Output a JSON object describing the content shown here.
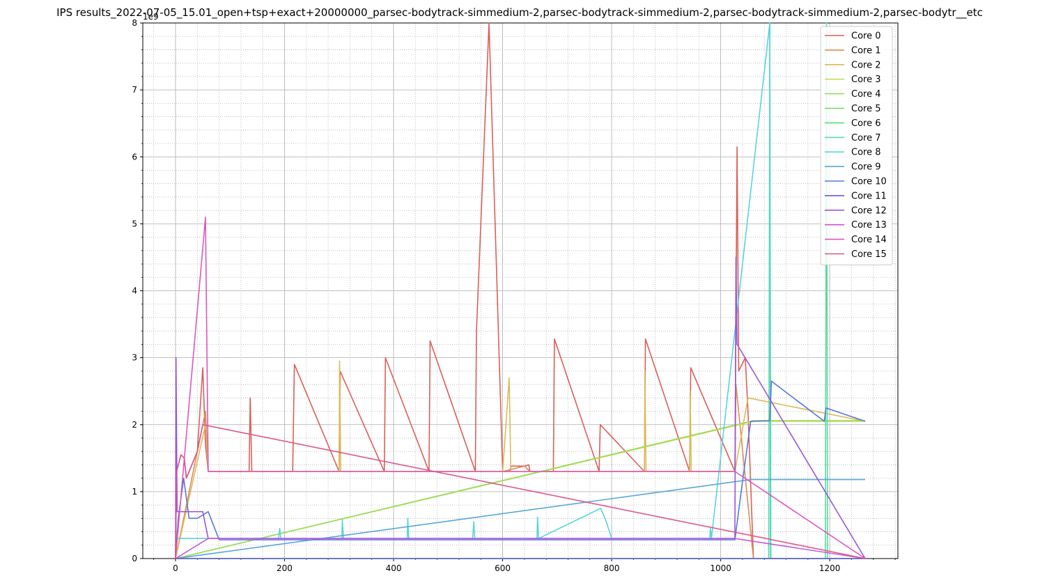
{
  "chart_data": {
    "type": "line",
    "title": "IPS results_2022-07-05_15.01_open+tsp+exact+20000000_parsec-bodytrack-simmedium-2,parsec-bodytrack-simmedium-2,parsec-bodytrack-simmedium-2,parsec-bodytr__etc",
    "xlabel": "",
    "ylabel": "",
    "y_offset_label": "1e9",
    "xlim": [
      -60,
      1325
    ],
    "ylim": [
      0,
      8
    ],
    "x_ticks": [
      0,
      200,
      400,
      600,
      800,
      1000,
      1200
    ],
    "y_ticks": [
      0,
      1,
      2,
      3,
      4,
      5,
      6,
      7,
      8
    ],
    "grid": {
      "major": true,
      "minor": true
    },
    "legend_position": "top-right",
    "series": [
      {
        "name": "Core 0",
        "color": "#db5f57",
        "role": "high",
        "x": [
          0,
          2,
          10,
          16,
          20,
          40,
          50,
          55,
          60,
          135,
          137,
          140,
          215,
          218,
          300,
          302,
          383,
          385,
          465,
          467,
          550,
          552,
          575,
          600,
          612,
          616,
          640,
          648,
          650,
          693,
          695,
          777,
          779,
          860,
          862,
          943,
          945,
          1026,
          1030,
          1033,
          1045,
          1050,
          1060,
          1265
        ],
        "y": [
          0,
          1.3,
          1.55,
          1.5,
          1.2,
          1.6,
          2.85,
          1.7,
          1.3,
          1.3,
          2.4,
          1.3,
          1.3,
          2.9,
          1.3,
          2.8,
          1.3,
          3.0,
          1.3,
          3.25,
          1.3,
          3.4,
          8.0,
          1.3,
          1.3,
          1.38,
          1.38,
          1.4,
          1.3,
          1.3,
          3.28,
          1.3,
          2.0,
          1.3,
          3.28,
          1.3,
          2.85,
          1.3,
          6.15,
          2.8,
          3.0,
          2.2,
          0,
          0
        ]
      },
      {
        "name": "Core 1",
        "color": "#db8c57",
        "role": "high",
        "x": [
          0,
          55,
          60,
          140,
          600,
          640,
          650,
          700,
          1026,
          1028,
          1060,
          1265
        ],
        "y": [
          0,
          2.2,
          1.3,
          1.3,
          1.3,
          1.38,
          1.3,
          1.3,
          1.3,
          2.6,
          0,
          0
        ]
      },
      {
        "name": "Core 2",
        "color": "#dbba57",
        "role": "high",
        "x": [
          0,
          55,
          60,
          300,
          301,
          303,
          600,
          612,
          615,
          650,
          700,
          860,
          861,
          863,
          943,
          944,
          946,
          1026,
          1050,
          1265
        ],
        "y": [
          0,
          2.0,
          1.3,
          1.3,
          2.95,
          1.3,
          1.3,
          2.7,
          1.3,
          1.3,
          1.3,
          1.3,
          2.8,
          1.3,
          1.3,
          2.5,
          1.3,
          1.3,
          2.4,
          2.05
        ]
      },
      {
        "name": "Core 3",
        "color": "#c6db57",
        "role": "high",
        "x": [
          0,
          1060,
          1265
        ],
        "y": [
          0,
          2.05,
          2.05
        ]
      },
      {
        "name": "Core 4",
        "color": "#98db57",
        "role": "high",
        "x": [
          0,
          1060,
          1265
        ],
        "y": [
          0,
          2.06,
          2.06
        ]
      },
      {
        "name": "Core 5",
        "color": "#6bdb57",
        "role": "low",
        "x": [
          0,
          1265
        ],
        "y": [
          0,
          0
        ]
      },
      {
        "name": "Core 6",
        "color": "#57db72",
        "role": "low",
        "x": [
          0,
          1265
        ],
        "y": [
          0,
          0
        ]
      },
      {
        "name": "Core 7",
        "color": "#57dba0",
        "role": "spike",
        "x": [
          0,
          1088,
          1090,
          1092,
          1192,
          1194,
          1196,
          1265
        ],
        "y": [
          0,
          0,
          8.0,
          0,
          0,
          8.0,
          0,
          0
        ]
      },
      {
        "name": "Core 8",
        "color": "#57d4db",
        "role": "low",
        "x": [
          0,
          189,
          191,
          193,
          305,
          306,
          308,
          425,
          426,
          428,
          545,
          547,
          549,
          663,
          664,
          666,
          780,
          790,
          800,
          980,
          981,
          983,
          1090,
          1091,
          1093,
          1265
        ],
        "y": [
          0.3,
          0.3,
          0.45,
          0.3,
          0.3,
          0.58,
          0.3,
          0.3,
          0.6,
          0.3,
          0.3,
          0.55,
          0.3,
          0.3,
          0.62,
          0.3,
          0.75,
          0.55,
          0.3,
          0.3,
          0.45,
          0.3,
          8.0,
          0,
          0,
          0
        ]
      },
      {
        "name": "Core 9",
        "color": "#57a6db",
        "role": "mid",
        "x": [
          0,
          1055,
          1265
        ],
        "y": [
          0,
          1.18,
          1.18
        ]
      },
      {
        "name": "Core 10",
        "color": "#5778db",
        "role": "mid",
        "x": [
          0,
          5,
          15,
          25,
          40,
          60,
          80,
          1026,
          1040,
          1055,
          1090,
          1093,
          1190,
          1193,
          1265
        ],
        "y": [
          0,
          0.6,
          1.2,
          0.6,
          0.6,
          0.7,
          0.28,
          0.28,
          1.15,
          2.05,
          2.06,
          2.65,
          2.05,
          2.25,
          2.05
        ]
      },
      {
        "name": "Core 11",
        "color": "#6b57db",
        "role": "mid",
        "x": [
          0,
          1265
        ],
        "y": [
          0,
          0
        ]
      },
      {
        "name": "Core 12",
        "color": "#9857db",
        "role": "mid",
        "x": [
          0,
          1,
          3,
          10,
          30,
          50,
          60,
          1026,
          1028,
          1030,
          1265
        ],
        "y": [
          0,
          3.0,
          0.7,
          0.7,
          0.7,
          0.7,
          0.3,
          0.3,
          4.5,
          3.2,
          0
        ]
      },
      {
        "name": "Core 13",
        "color": "#c657db",
        "role": "mid",
        "x": [
          0,
          60,
          1026,
          1265
        ],
        "y": [
          0,
          0.3,
          0.3,
          0
        ]
      },
      {
        "name": "Core 14",
        "color": "#db57ba",
        "role": "high",
        "x": [
          0,
          55,
          60,
          612,
          650,
          1026,
          1265
        ],
        "y": [
          0,
          5.1,
          1.3,
          1.3,
          1.3,
          1.3,
          0
        ]
      },
      {
        "name": "Core 15",
        "color": "#db578c",
        "role": "high",
        "x": [
          0,
          2,
          10,
          16,
          20,
          40,
          50,
          1265
        ],
        "y": [
          0,
          1.3,
          1.55,
          1.5,
          1.2,
          1.6,
          2.0,
          0
        ]
      }
    ]
  }
}
